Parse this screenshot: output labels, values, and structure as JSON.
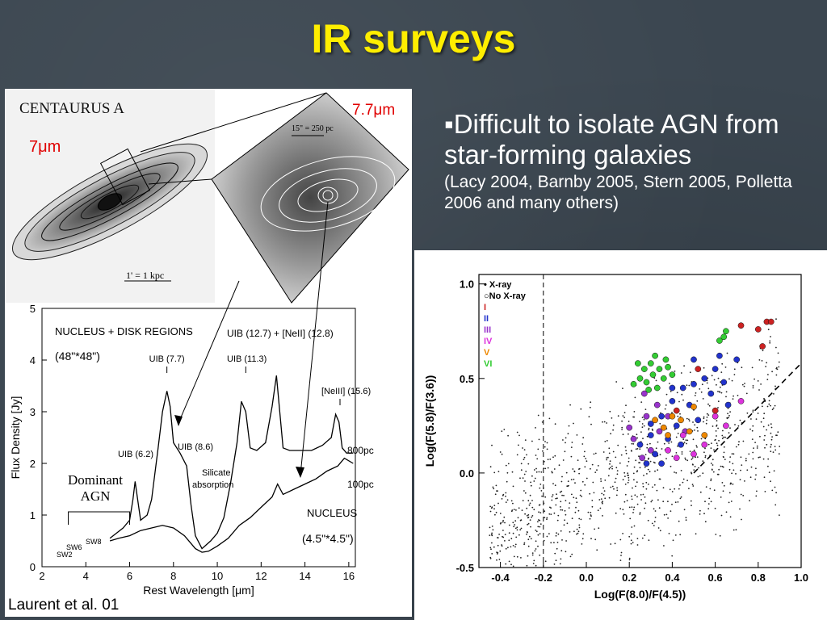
{
  "slide": {
    "title": "IR surveys",
    "bullet_marker": "▪",
    "bullet_main": "Difficult to isolate AGN from star-forming galaxies",
    "bullet_sub": "(Lacy 2004, Barnby 2005, Stern 2005, Polletta 2006 and many others)",
    "credit": "Laurent et al. 01"
  },
  "images": {
    "galaxy_title": "CENTAURUS  A",
    "label_7um": "7μm",
    "label_77um": "7.7μm",
    "scale_left": "1' = 1 kpc",
    "scale_inset": "15\" = 250 pc"
  },
  "colors": {
    "title": "#ffee00",
    "background": "#3b4650",
    "annotation_red": "#e00000",
    "xray_i": "#cc2222",
    "xray_ii": "#2233cc",
    "xray_iii": "#9933cc",
    "xray_iv": "#dd33dd",
    "xray_v": "#ee8800",
    "xray_vi": "#33cc33"
  },
  "chart_data": [
    {
      "type": "line",
      "xlabel": "Rest Wavelength [μm]",
      "ylabel": "Flux Density [Jy]",
      "xlim": [
        2,
        16.3
      ],
      "ylim": [
        0,
        5
      ],
      "xticks": [
        2,
        4,
        6,
        8,
        10,
        12,
        14,
        16
      ],
      "xtick_labels": [
        "2",
        "4",
        "6",
        "8",
        "10",
        "12",
        "14",
        "16"
      ],
      "yticks": [
        0,
        1,
        2,
        3,
        4,
        5
      ],
      "ytick_labels": [
        "0",
        "1",
        "2",
        "3",
        "4",
        "5"
      ],
      "annotations": {
        "regions": "NUCLEUS + DISK REGIONS",
        "regions_aperture": "(48\"*48\")",
        "uib77": "UIB (7.7)",
        "uib127": "UIB (12.7) + [NeII] (12.8)",
        "uib113": "UIB (11.3)",
        "neiii": "[NeIII] (15.6)",
        "uib62": "UIB (6.2)",
        "uib86": "UIB (8.6)",
        "silicate_1": "Silicate",
        "silicate_2": "absorption",
        "dominant_1": "Dominant",
        "dominant_2": "AGN",
        "nucleus": "NUCLEUS",
        "nucleus_aperture": "(4.5\"*4.5\")",
        "label_800pc": "800pc",
        "label_100pc": "100pc",
        "sw2": "SW2",
        "sw6": "SW6",
        "sw8": "SW8"
      },
      "series": [
        {
          "name": "800pc",
          "x": [
            5.1,
            5.4,
            5.7,
            6.0,
            6.15,
            6.25,
            6.35,
            6.5,
            6.8,
            7.0,
            7.3,
            7.5,
            7.7,
            7.85,
            8.0,
            8.3,
            8.6,
            8.8,
            9.0,
            9.3,
            9.7,
            10.0,
            10.3,
            10.6,
            10.9,
            11.1,
            11.3,
            11.5,
            11.8,
            12.2,
            12.5,
            12.7,
            12.85,
            13.0,
            13.3,
            13.8,
            14.3,
            14.8,
            15.2,
            15.4,
            15.55,
            15.7,
            15.9,
            16.2
          ],
          "y": [
            0.55,
            0.65,
            0.75,
            0.9,
            1.3,
            1.65,
            1.35,
            0.9,
            1.0,
            1.3,
            2.3,
            3.0,
            3.4,
            3.1,
            2.4,
            2.2,
            1.95,
            1.2,
            0.6,
            0.35,
            0.5,
            0.65,
            0.95,
            1.6,
            2.4,
            3.2,
            3.0,
            2.3,
            2.25,
            2.4,
            3.1,
            3.7,
            3.0,
            2.3,
            2.25,
            2.25,
            2.25,
            2.35,
            2.5,
            2.95,
            2.8,
            2.3,
            2.2,
            2.2
          ]
        },
        {
          "name": "100pc",
          "x": [
            5.1,
            5.5,
            6.0,
            6.5,
            7.0,
            7.5,
            8.0,
            8.5,
            9.0,
            9.3,
            9.6,
            10.0,
            10.5,
            11.0,
            11.5,
            12.0,
            12.5,
            12.75,
            13.0,
            13.5,
            14.0,
            14.5,
            15.0,
            15.5,
            15.8,
            16.2
          ],
          "y": [
            0.5,
            0.55,
            0.6,
            0.7,
            0.75,
            0.8,
            0.75,
            0.6,
            0.35,
            0.28,
            0.3,
            0.4,
            0.55,
            0.8,
            0.95,
            1.15,
            1.35,
            1.6,
            1.4,
            1.5,
            1.6,
            1.7,
            1.85,
            1.95,
            2.1,
            2.0
          ]
        }
      ]
    },
    {
      "type": "scatter",
      "xlabel": "Log(F(8.0)/F(4.5))",
      "ylabel": "Log(F(5.8)/F(3.6))",
      "xlim": [
        -0.5,
        1.0
      ],
      "ylim": [
        -0.5,
        1.05
      ],
      "xticks": [
        -0.4,
        -0.2,
        0.0,
        0.2,
        0.4,
        0.6,
        0.8,
        1.0
      ],
      "xtick_labels": [
        "-0.4",
        "-0.2",
        "0.0",
        "0.2",
        "0.4",
        "0.6",
        "0.8",
        "1.0"
      ],
      "yticks": [
        -0.5,
        0.0,
        0.5,
        1.0
      ],
      "ytick_labels": [
        "-0.5",
        "0.0",
        "0.5",
        "1.0"
      ],
      "vertical_line_x": -0.2,
      "wedge": [
        [
          0.5,
          0.0
        ],
        [
          1.0,
          0.58
        ]
      ],
      "legend": [
        {
          "label": "• X-ray",
          "color": "#000000"
        },
        {
          "label": "○No X-ray",
          "color": "#000000"
        },
        {
          "label": "I",
          "color": "#cc2222"
        },
        {
          "label": "II",
          "color": "#2233cc"
        },
        {
          "label": "III",
          "color": "#9933cc"
        },
        {
          "label": "IV",
          "color": "#dd33dd"
        },
        {
          "label": "V",
          "color": "#ee8800"
        },
        {
          "label": "VI",
          "color": "#33cc33"
        }
      ],
      "groups": [
        {
          "class": "I",
          "color": "#cc2222",
          "points": [
            [
              0.72,
              0.78
            ],
            [
              0.8,
              0.76
            ],
            [
              0.84,
              0.8
            ],
            [
              0.86,
              0.8
            ],
            [
              0.82,
              0.67
            ],
            [
              0.52,
              0.55
            ],
            [
              0.6,
              0.33
            ],
            [
              0.42,
              0.33
            ]
          ]
        },
        {
          "class": "II",
          "color": "#2233cc",
          "points": [
            [
              0.3,
              0.26
            ],
            [
              0.35,
              0.3
            ],
            [
              0.4,
              0.38
            ],
            [
              0.45,
              0.45
            ],
            [
              0.5,
              0.47
            ],
            [
              0.55,
              0.5
            ],
            [
              0.6,
              0.55
            ],
            [
              0.25,
              0.15
            ],
            [
              0.32,
              0.1
            ],
            [
              0.38,
              0.18
            ],
            [
              0.42,
              0.25
            ],
            [
              0.48,
              0.36
            ],
            [
              0.58,
              0.42
            ],
            [
              0.64,
              0.48
            ],
            [
              0.7,
              0.6
            ],
            [
              0.35,
              0.05
            ],
            [
              0.3,
              0.2
            ],
            [
              0.52,
              0.28
            ],
            [
              0.44,
              0.15
            ],
            [
              0.66,
              0.36
            ],
            [
              0.28,
              0.05
            ],
            [
              0.4,
              0.45
            ],
            [
              0.62,
              0.62
            ],
            [
              0.5,
              0.6
            ]
          ]
        },
        {
          "class": "III",
          "color": "#9933cc",
          "points": [
            [
              0.28,
              0.3
            ],
            [
              0.34,
              0.22
            ],
            [
              0.3,
              0.12
            ],
            [
              0.22,
              0.18
            ],
            [
              0.26,
              0.08
            ],
            [
              0.38,
              0.3
            ],
            [
              0.46,
              0.22
            ],
            [
              0.33,
              0.36
            ],
            [
              0.27,
              0.42
            ],
            [
              0.2,
              0.24
            ]
          ]
        },
        {
          "class": "IV",
          "color": "#dd33dd",
          "points": [
            [
              0.45,
              0.2
            ],
            [
              0.55,
              0.15
            ],
            [
              0.6,
              0.3
            ],
            [
              0.38,
              0.12
            ],
            [
              0.5,
              0.1
            ],
            [
              0.65,
              0.25
            ],
            [
              0.72,
              0.38
            ],
            [
              0.42,
              0.08
            ]
          ]
        },
        {
          "class": "V",
          "color": "#ee8800",
          "points": [
            [
              0.36,
              0.24
            ],
            [
              0.4,
              0.3
            ],
            [
              0.44,
              0.28
            ],
            [
              0.5,
              0.35
            ],
            [
              0.32,
              0.28
            ],
            [
              0.48,
              0.22
            ],
            [
              0.55,
              0.2
            ],
            [
              0.38,
              0.2
            ]
          ]
        },
        {
          "class": "VI",
          "color": "#33cc33",
          "points": [
            [
              0.28,
              0.48
            ],
            [
              0.31,
              0.52
            ],
            [
              0.34,
              0.55
            ],
            [
              0.37,
              0.6
            ],
            [
              0.3,
              0.58
            ],
            [
              0.25,
              0.5
            ],
            [
              0.33,
              0.45
            ],
            [
              0.36,
              0.5
            ],
            [
              0.4,
              0.52
            ],
            [
              0.27,
              0.55
            ],
            [
              0.32,
              0.62
            ],
            [
              0.22,
              0.47
            ],
            [
              0.24,
              0.58
            ],
            [
              0.38,
              0.56
            ],
            [
              0.29,
              0.44
            ],
            [
              0.64,
              0.72
            ],
            [
              0.65,
              0.75
            ],
            [
              0.62,
              0.7
            ]
          ]
        }
      ]
    }
  ]
}
